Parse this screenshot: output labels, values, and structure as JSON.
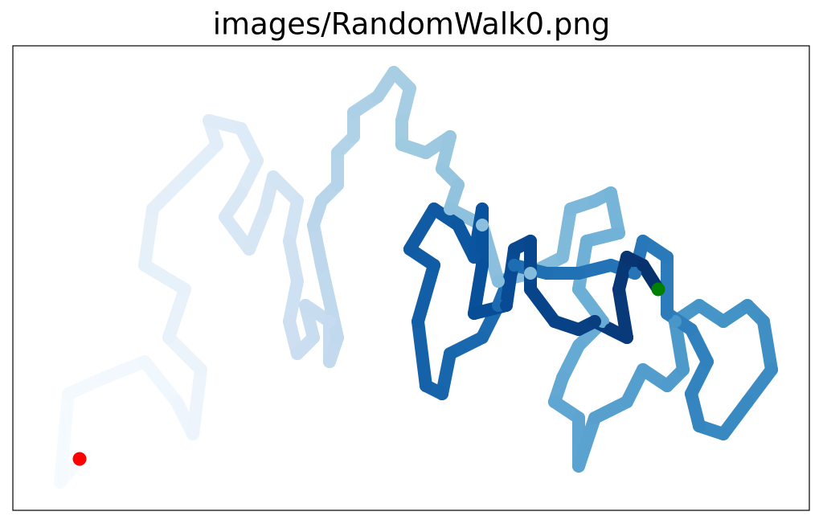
{
  "chart_data": {
    "type": "walk",
    "title": "images/RandomWalk0.png",
    "x": [
      8.3,
      5.9,
      6.9,
      11.4,
      16.4,
      20.4,
      22.4,
      23.4,
      19.4,
      21.4,
      16.4,
      17.4,
      21.4,
      25.4,
      24.4,
      28.4,
      30.4,
      28.4,
      26.4,
      29.4,
      31.4,
      32.4,
      35.4,
      34.4,
      35.4,
      34.4,
      35.4,
      37.4,
      36.4,
      39.4,
      39.4,
      40.4,
      38.4,
      37.4,
      38.4,
      40.4,
      40.4,
      42.4,
      42.4,
      45.4,
      47.4,
      49.4,
      48.4,
      48.4,
      51.4,
      54.4,
      53.4,
      55.4,
      54.4,
      58.4,
      60.4,
      64.4,
      68.4,
      69.4,
      72.4,
      74.4,
      75.4,
      71.4,
      70.4,
      73.4,
      70.4,
      68.4,
      67.4,
      70.4,
      70.4,
      72.4,
      76.4,
      78.4,
      81.4,
      83.4,
      82.4,
      85.4,
      88.4,
      91.4,
      93.4,
      94.4,
      91.4,
      88.4,
      85.4,
      84.4,
      86.4,
      84.4,
      81.4,
      81.4,
      78.4,
      77.4,
      74.4,
      70.4,
      66.4,
      62.4,
      60.4,
      58.4,
      54.4,
      53.4,
      51.4,
      50.4,
      52.4,
      49.4,
      52.4,
      55.4,
      57.4,
      58.4,
      58.4,
      57.4,
      61.4,
      62.4,
      64.4,
      64.4,
      67.4,
      70.4,
      72.4,
      74.4,
      76.4,
      75.4,
      76.4,
      78.4,
      80.3
    ],
    "y": [
      6.4,
      3.5,
      14.5,
      16.5,
      18.5,
      13.5,
      9.5,
      17.5,
      21.5,
      27.5,
      30.5,
      37.5,
      41.5,
      45.5,
      48.5,
      47.5,
      43.5,
      39.5,
      36.5,
      32.5,
      37.5,
      41.5,
      38.5,
      33.5,
      28.5,
      23.5,
      19.5,
      21.5,
      25.5,
      23.5,
      18.5,
      21.5,
      30.5,
      35.5,
      38.5,
      40.5,
      44.5,
      46.5,
      49.5,
      51.5,
      54.5,
      52.5,
      48.5,
      45.5,
      44.5,
      46.5,
      42.5,
      40.5,
      37.5,
      35.5,
      28.5,
      29.5,
      31.5,
      37.5,
      38.5,
      39.5,
      34.5,
      33.5,
      27.5,
      23.5,
      20.5,
      16.5,
      13.5,
      11.5,
      5.5,
      11.5,
      13.5,
      17.5,
      15.5,
      17.5,
      23.5,
      25.5,
      23.5,
      25.5,
      23.5,
      17.5,
      13.5,
      9.5,
      10.5,
      14.5,
      18.5,
      22.5,
      24.5,
      31.5,
      33.5,
      29.5,
      30.5,
      29.5,
      29.5,
      30.5,
      25.5,
      21.5,
      19.5,
      14.5,
      15.5,
      23.5,
      30.5,
      32.5,
      37.5,
      35.5,
      31.5,
      37.5,
      30.5,
      24.5,
      25.5,
      32.5,
      33.5,
      27.5,
      23.5,
      22.5,
      23.5,
      22.5,
      21.5,
      27.5,
      31.5,
      30.5,
      27.5
    ],
    "xlim": [
      0,
      99.1
    ],
    "ylim": [
      0,
      57.8
    ],
    "colormap": [
      "#f7fbff",
      "#deebf7",
      "#c6dbef",
      "#9ecae1",
      "#6baed6",
      "#4292c6",
      "#2171b5",
      "#08519c",
      "#08306b"
    ],
    "start_color": "#ff0000",
    "end_color": "#008000"
  }
}
